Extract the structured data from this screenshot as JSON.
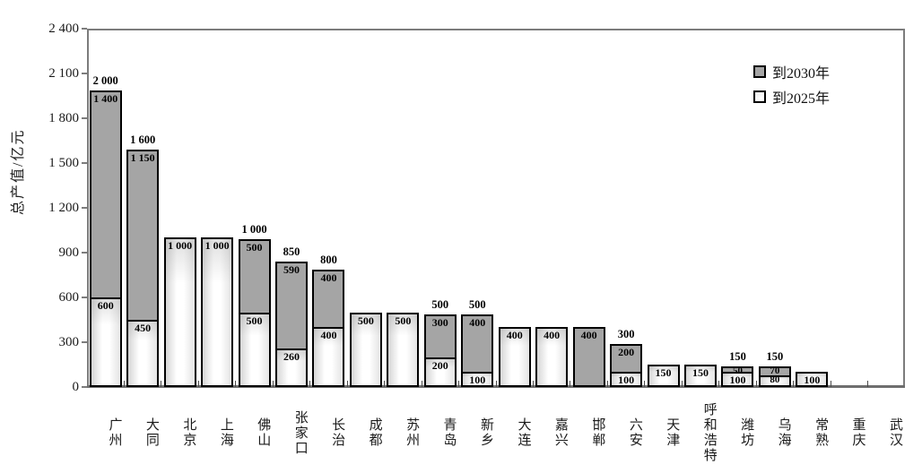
{
  "chart_data": {
    "type": "bar",
    "stacked": true,
    "title": "",
    "xlabel": "",
    "ylabel": "总产值/亿元",
    "ylim": [
      0,
      2400
    ],
    "ytick_interval": 300,
    "grid": false,
    "legend_position": "top-right-inside",
    "yticks": [
      {
        "value": 2400,
        "label": "2 400"
      },
      {
        "value": 2100,
        "label": "2 100"
      },
      {
        "value": 1800,
        "label": "1 800"
      },
      {
        "value": 1500,
        "label": "1 500"
      },
      {
        "value": 1200,
        "label": "1 200"
      },
      {
        "value": 900,
        "label": "900"
      },
      {
        "value": 600,
        "label": "600"
      },
      {
        "value": 300,
        "label": "300"
      },
      {
        "value": 0,
        "label": "0"
      }
    ],
    "legend": [
      {
        "name": "到2030年",
        "key": "dark"
      },
      {
        "name": "到2025年",
        "key": "light"
      }
    ],
    "colors": {
      "dark_fill": "#a5a5a5",
      "light_fill": "#f2f2f2",
      "bar_border": "#000000",
      "axis_frame": "#7c7c7c"
    },
    "categories": [
      "广州",
      "大同",
      "北京",
      "上海",
      "佛山",
      "张家口",
      "长治",
      "成都",
      "苏州",
      "青岛",
      "新乡",
      "大连",
      "嘉兴",
      "邯郸",
      "六安",
      "天津",
      "呼和浩特",
      "潍坊",
      "乌海",
      "常熟",
      "重庆",
      "武汉"
    ],
    "series": [
      {
        "name": "到2025年",
        "key": "light",
        "values": [
          600,
          450,
          1000,
          1000,
          500,
          260,
          400,
          500,
          500,
          200,
          100,
          400,
          400,
          0,
          100,
          150,
          150,
          100,
          80,
          100,
          0,
          0
        ],
        "labels": [
          "600",
          "450",
          "1 000",
          "1 000",
          "500",
          "260",
          "400",
          "500",
          "500",
          "200",
          "100",
          "400",
          "400",
          "",
          "100",
          "150",
          "150",
          "100",
          "80",
          "100",
          "",
          ""
        ]
      },
      {
        "name": "到2030年",
        "key": "dark",
        "values": [
          1400,
          1150,
          0,
          0,
          500,
          590,
          400,
          0,
          0,
          300,
          400,
          0,
          0,
          400,
          200,
          0,
          0,
          50,
          70,
          0,
          0,
          0
        ],
        "labels": [
          "1 400",
          "1 150",
          "",
          "",
          "500",
          "590",
          "400",
          "",
          "",
          "300",
          "400",
          "",
          "",
          "400",
          "200",
          "",
          "",
          "50",
          "70",
          "",
          "",
          ""
        ]
      }
    ],
    "totals": [
      "2 000",
      "1 600",
      "",
      "",
      "1 000",
      "850",
      "800",
      "",
      "",
      "500",
      "500",
      "",
      "",
      "",
      "300",
      "",
      "",
      "150",
      "150",
      "",
      "",
      ""
    ]
  }
}
